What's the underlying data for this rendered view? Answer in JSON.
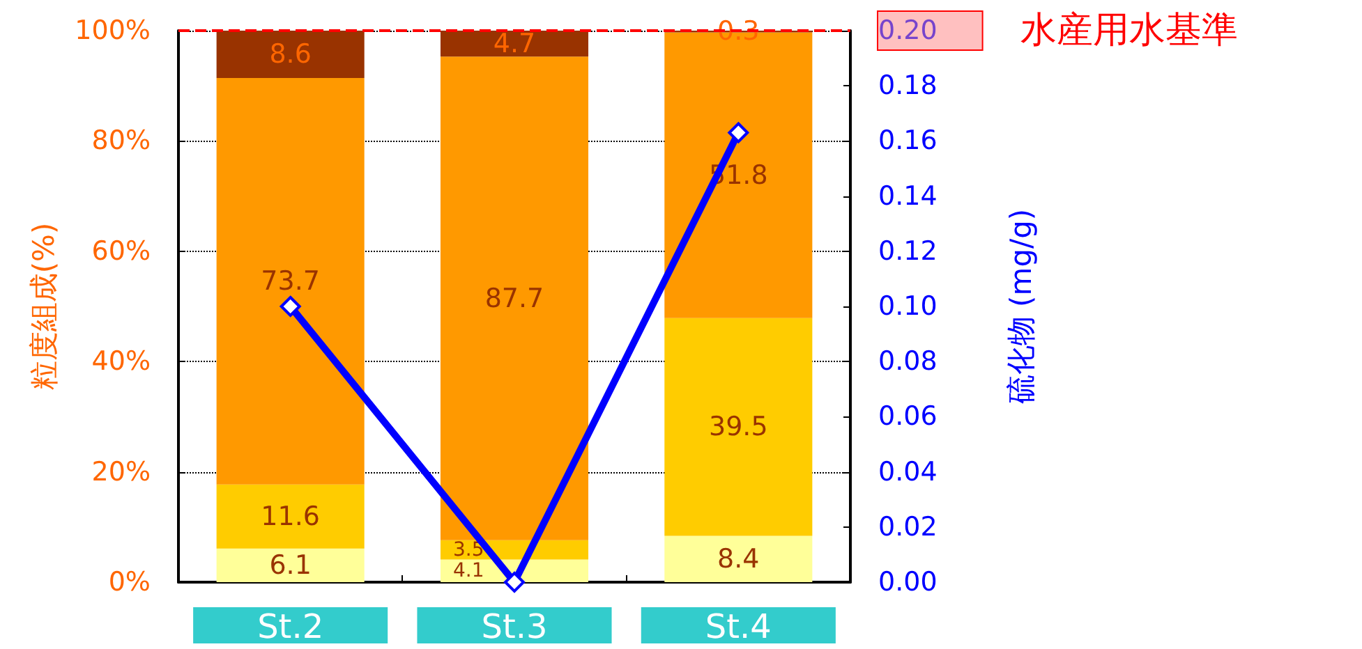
{
  "chart_data": {
    "type": "bar",
    "stacked": true,
    "ylabel": "粒度組成(%)",
    "y2label": "硫化物 (mg/g)",
    "categories": [
      "St.2",
      "St.3",
      "St.4"
    ],
    "series": [
      {
        "color": "#ffff99",
        "values": [
          6.1,
          4.1,
          8.4
        ],
        "value_labels": [
          "6.1",
          "4.1",
          "8.4"
        ]
      },
      {
        "color": "#ffcc00",
        "values": [
          11.6,
          3.5,
          39.5
        ],
        "value_labels": [
          "11.6",
          "3.5",
          "39.5"
        ]
      },
      {
        "color": "#ff9900",
        "values": [
          73.7,
          87.7,
          51.8
        ],
        "value_labels": [
          "73.7",
          "87.7",
          "51.8"
        ]
      },
      {
        "color": "#993300",
        "values": [
          8.6,
          4.7,
          0.3
        ],
        "value_labels": [
          "8.6",
          "4.7",
          "0.3"
        ]
      },
      {
        "type": "line",
        "axis": "y2",
        "color": "#0000ff",
        "values": [
          0.1,
          0.0,
          0.163
        ]
      }
    ],
    "ylim": [
      0,
      100
    ],
    "yticks": [
      {
        "value": 0,
        "label": "0%"
      },
      {
        "value": 20,
        "label": "20%"
      },
      {
        "value": 40,
        "label": "40%"
      },
      {
        "value": 60,
        "label": "60%"
      },
      {
        "value": 80,
        "label": "80%"
      },
      {
        "value": 100,
        "label": "100%"
      }
    ],
    "y2lim": [
      0,
      0.2
    ],
    "y2ticks": [
      {
        "value": 0,
        "label": "0.00"
      },
      {
        "value": 0.02,
        "label": "0.02"
      },
      {
        "value": 0.04,
        "label": "0.04"
      },
      {
        "value": 0.06,
        "label": "0.06"
      },
      {
        "value": 0.08,
        "label": "0.08"
      },
      {
        "value": 0.1,
        "label": "0.10"
      },
      {
        "value": 0.12,
        "label": "0.12"
      },
      {
        "value": 0.14,
        "label": "0.14"
      },
      {
        "value": 0.16,
        "label": "0.16"
      },
      {
        "value": 0.18,
        "label": "0.18"
      },
      {
        "value": 0.2,
        "label": "0.20"
      }
    ],
    "ref_lines": [
      {
        "axis": "y2",
        "value": 0.2,
        "label": "水産用水基準",
        "color": "#ff0000",
        "line_style": "dashed"
      }
    ],
    "grid": "y",
    "marker": "diamond"
  }
}
